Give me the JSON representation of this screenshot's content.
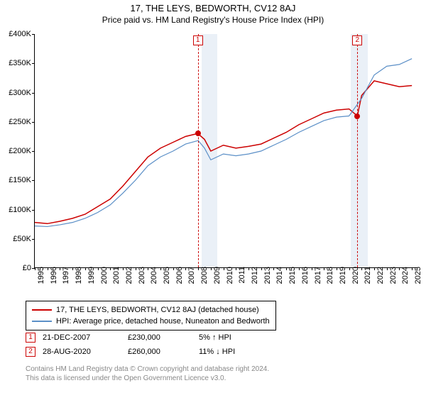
{
  "title": "17, THE LEYS, BEDWORTH, CV12 8AJ",
  "subtitle": "Price paid vs. HM Land Registry's House Price Index (HPI)",
  "chart": {
    "type": "line",
    "xlim": [
      1995,
      2025.5
    ],
    "ylim": [
      0,
      400000
    ],
    "ytick_step": 50000,
    "ytick_labels": [
      "£0",
      "£50K",
      "£100K",
      "£150K",
      "£200K",
      "£250K",
      "£300K",
      "£350K",
      "£400K"
    ],
    "xticks": [
      1995,
      1996,
      1997,
      1998,
      1999,
      2000,
      2001,
      2002,
      2003,
      2004,
      2005,
      2006,
      2007,
      2008,
      2009,
      2010,
      2011,
      2012,
      2013,
      2014,
      2015,
      2016,
      2017,
      2018,
      2019,
      2020,
      2021,
      2022,
      2023,
      2024,
      2025
    ],
    "background_color": "#ffffff",
    "shade_color": "#eaf0f7",
    "shade_ranges": [
      [
        2008.25,
        2009.5
      ],
      [
        2020.15,
        2021.5
      ]
    ],
    "series": [
      {
        "name": "price_paid",
        "label": "17, THE LEYS, BEDWORTH, CV12 8AJ (detached house)",
        "color": "#cc0000",
        "line_width": 1.5,
        "data": [
          [
            1995,
            78000
          ],
          [
            1996,
            76000
          ],
          [
            1997,
            80000
          ],
          [
            1998,
            85000
          ],
          [
            1999,
            92000
          ],
          [
            2000,
            105000
          ],
          [
            2001,
            118000
          ],
          [
            2002,
            140000
          ],
          [
            2003,
            165000
          ],
          [
            2004,
            190000
          ],
          [
            2005,
            205000
          ],
          [
            2006,
            215000
          ],
          [
            2007,
            225000
          ],
          [
            2007.97,
            230000
          ],
          [
            2008.5,
            220000
          ],
          [
            2009,
            200000
          ],
          [
            2009.5,
            205000
          ],
          [
            2010,
            210000
          ],
          [
            2011,
            205000
          ],
          [
            2012,
            208000
          ],
          [
            2013,
            212000
          ],
          [
            2014,
            222000
          ],
          [
            2015,
            232000
          ],
          [
            2016,
            245000
          ],
          [
            2017,
            255000
          ],
          [
            2018,
            265000
          ],
          [
            2019,
            270000
          ],
          [
            2020,
            272000
          ],
          [
            2020.66,
            260000
          ],
          [
            2021,
            295000
          ],
          [
            2022,
            320000
          ],
          [
            2023,
            315000
          ],
          [
            2024,
            310000
          ],
          [
            2025,
            312000
          ]
        ]
      },
      {
        "name": "hpi",
        "label": "HPI: Average price, detached house, Nuneaton and Bedworth",
        "color": "#5b8fc7",
        "line_width": 1.2,
        "data": [
          [
            1995,
            72000
          ],
          [
            1996,
            71000
          ],
          [
            1997,
            74000
          ],
          [
            1998,
            78000
          ],
          [
            1999,
            85000
          ],
          [
            2000,
            95000
          ],
          [
            2001,
            108000
          ],
          [
            2002,
            128000
          ],
          [
            2003,
            150000
          ],
          [
            2004,
            175000
          ],
          [
            2005,
            190000
          ],
          [
            2006,
            200000
          ],
          [
            2007,
            212000
          ],
          [
            2008,
            218000
          ],
          [
            2008.5,
            205000
          ],
          [
            2009,
            185000
          ],
          [
            2009.5,
            190000
          ],
          [
            2010,
            195000
          ],
          [
            2011,
            192000
          ],
          [
            2012,
            195000
          ],
          [
            2013,
            200000
          ],
          [
            2014,
            210000
          ],
          [
            2015,
            220000
          ],
          [
            2016,
            232000
          ],
          [
            2017,
            242000
          ],
          [
            2018,
            252000
          ],
          [
            2019,
            258000
          ],
          [
            2020,
            260000
          ],
          [
            2021,
            290000
          ],
          [
            2022,
            330000
          ],
          [
            2023,
            345000
          ],
          [
            2024,
            348000
          ],
          [
            2025,
            358000
          ]
        ]
      }
    ],
    "markers": [
      {
        "n": "1",
        "x": 2007.97,
        "y": 230000
      },
      {
        "n": "2",
        "x": 2020.66,
        "y": 260000
      }
    ]
  },
  "legend": {
    "items": [
      {
        "color": "#cc0000",
        "label": "17, THE LEYS, BEDWORTH, CV12 8AJ (detached house)"
      },
      {
        "color": "#5b8fc7",
        "label": "HPI: Average price, detached house, Nuneaton and Bedworth"
      }
    ]
  },
  "transactions": [
    {
      "n": "1",
      "date": "21-DEC-2007",
      "price": "£230,000",
      "delta": "5% ↑ HPI"
    },
    {
      "n": "2",
      "date": "28-AUG-2020",
      "price": "£260,000",
      "delta": "11% ↓ HPI"
    }
  ],
  "footer": {
    "line1": "Contains HM Land Registry data © Crown copyright and database right 2024.",
    "line2": "This data is licensed under the Open Government Licence v3.0."
  }
}
